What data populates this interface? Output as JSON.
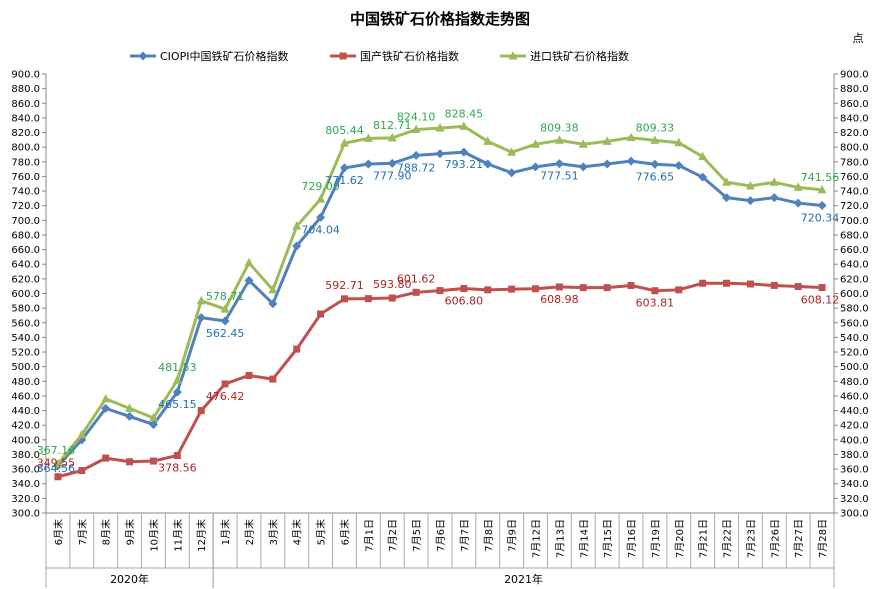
{
  "chart_data": {
    "type": "line",
    "title": "中国铁矿石价格指数走势图",
    "unit": "点",
    "ylim": [
      300,
      900
    ],
    "ystep": 20,
    "grid": false,
    "legend_position": "top",
    "categories": [
      "6月末",
      "7月末",
      "8月末",
      "9月末",
      "10月末",
      "11月末",
      "12月末",
      "1月末",
      "2月末",
      "3月末",
      "4月末",
      "5月末",
      "6月末",
      "7月1日",
      "7月2日",
      "7月5日",
      "7月6日",
      "7月7日",
      "7月8日",
      "7月9日",
      "7月12日",
      "7月13日",
      "7月14日",
      "7月15日",
      "7月16日",
      "7月19日",
      "7月20日",
      "7月21日",
      "7月22日",
      "7月23日",
      "7月26日",
      "7月27日",
      "7月28日"
    ],
    "year_groups": [
      {
        "label": "2020年",
        "start": 0,
        "end": 6
      },
      {
        "label": "2021年",
        "start": 7,
        "end": 32
      }
    ],
    "series": [
      {
        "name": "CIOPI中国铁矿石价格指数",
        "color": "#4F81BD",
        "label_color": "#1F6FB4",
        "marker": "diamond",
        "values": [
          364.56,
          400,
          443,
          432,
          421,
          465.15,
          567,
          562.45,
          618,
          586,
          665,
          704.04,
          771.62,
          777,
          777.9,
          788.72,
          791,
          793.21,
          777,
          765,
          773,
          777.51,
          773,
          777,
          781,
          776.65,
          775,
          759,
          731,
          727,
          731,
          723.5,
          720.34
        ],
        "labels": {
          "0": "364.56",
          "5": "465.15",
          "7": "562.45",
          "11": "704.04",
          "12": "771.62",
          "14": "777.90",
          "15": "788.72",
          "17": "793.21",
          "21": "777.51",
          "25": "776.65",
          "32": "720.34"
        }
      },
      {
        "name": "国产铁矿石价格指数",
        "color": "#C0504D",
        "label_color": "#B22222",
        "marker": "square",
        "values": [
          349.55,
          358,
          375,
          370,
          371,
          378.56,
          440,
          476.42,
          488,
          483,
          524,
          572,
          592.71,
          593,
          593.8,
          601.62,
          604,
          606.8,
          605,
          606,
          606.5,
          608.98,
          608,
          608,
          611,
          603.81,
          605,
          614,
          614,
          613,
          611,
          609.5,
          608.12
        ],
        "labels": {
          "0": "349.55",
          "5": "378.56",
          "7": "476.42",
          "12": "592.71",
          "14": "593.80",
          "15": "601.62",
          "17": "606.80",
          "21": "608.98",
          "25": "603.81",
          "32": "608.12"
        }
      },
      {
        "name": "进口铁矿石价格指数",
        "color": "#9BBB59",
        "label_color": "#2EA84F",
        "marker": "triangle",
        "values": [
          367.16,
          407,
          456,
          443,
          430,
          481.53,
          590,
          578.71,
          642,
          605,
          692,
          729,
          805.44,
          812,
          812.71,
          824.1,
          826,
          828.45,
          808,
          793,
          804,
          809.38,
          804,
          808,
          813,
          809.33,
          806,
          787,
          752,
          747,
          752,
          745,
          741.56
        ],
        "labels": {
          "0": "367.16",
          "5": "481.53",
          "7": "578.71",
          "11": "729.00",
          "12": "805.44",
          "14": "812.71",
          "15": "824.10",
          "17": "828.45",
          "21": "809.38",
          "25": "809.33",
          "32": "741.56"
        }
      }
    ]
  }
}
